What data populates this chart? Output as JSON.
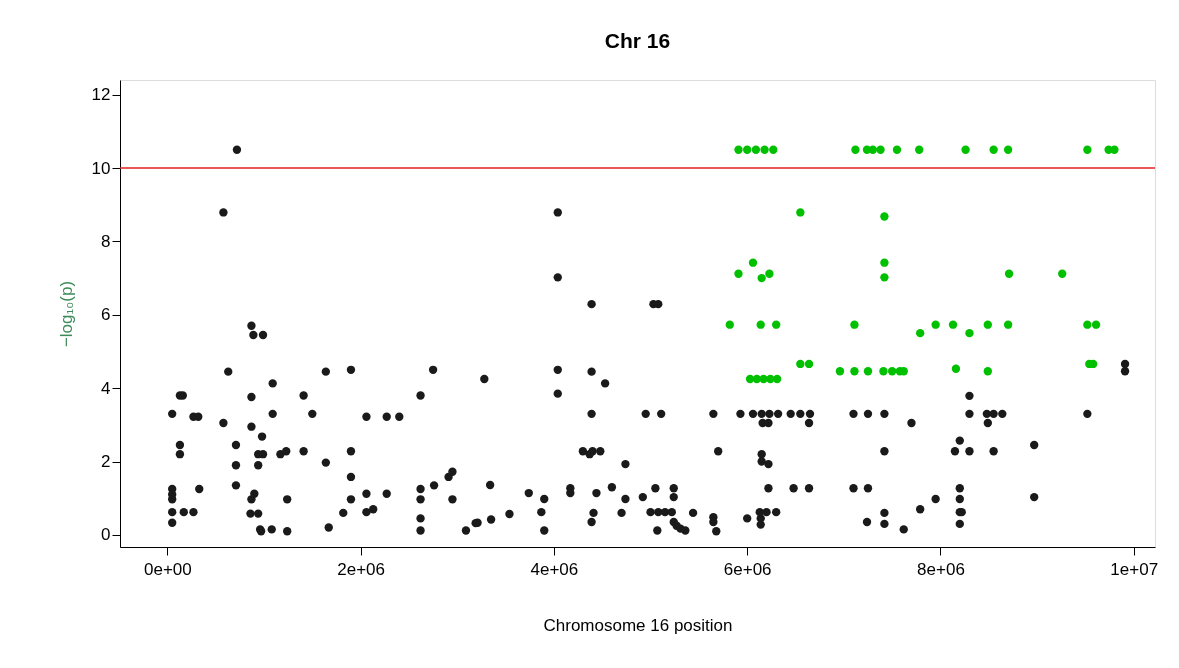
{
  "chart_data": {
    "type": "scatter",
    "title": "Chr 16",
    "xlabel": "Chromosome 16 position",
    "ylabel": "−log₁₀(p)",
    "xlim": [
      -490000,
      10220000
    ],
    "ylim": [
      -0.33,
      12.4
    ],
    "xticks": [
      {
        "value": 0,
        "label": "0e+00"
      },
      {
        "value": 2000000,
        "label": "2e+06"
      },
      {
        "value": 4000000,
        "label": "4e+06"
      },
      {
        "value": 6000000,
        "label": "6e+06"
      },
      {
        "value": 8000000,
        "label": "8e+06"
      },
      {
        "value": 10000000,
        "label": "1e+07"
      }
    ],
    "yticks": [
      0,
      2,
      4,
      6,
      8,
      10,
      12
    ],
    "grid": false,
    "legend": false,
    "marker": "circle",
    "ref_lines": [
      {
        "axis": "y",
        "value": 10,
        "color": "#e02020"
      }
    ],
    "series": [
      {
        "color": "#1a1a1a",
        "x": [
          720000,
          580000,
          870000,
          890000,
          990000,
          630000,
          1640000,
          1900000,
          2750000,
          1090000,
          130000,
          160000,
          870000,
          1410000,
          2620000,
          50000,
          270000,
          320000,
          1090000,
          1500000,
          2060000,
          2270000,
          2400000,
          580000,
          870000,
          980000,
          130000,
          130000,
          710000,
          710000,
          940000,
          990000,
          940000,
          1170000,
          1230000,
          1410000,
          1640000,
          1900000,
          1900000,
          330000,
          710000,
          50000,
          50000,
          50000,
          900000,
          870000,
          1240000,
          1900000,
          2060000,
          2130000,
          2060000,
          2270000,
          2620000,
          2620000,
          2620000,
          2620000,
          2760000,
          2910000,
          2950000,
          2950000,
          3090000,
          3190000,
          50000,
          170000,
          270000,
          50000,
          860000,
          940000,
          960000,
          1080000,
          970000,
          1240000,
          1670000,
          1820000,
          4040000,
          4040000,
          4390000,
          5030000,
          5080000,
          3280000,
          4040000,
          4390000,
          4530000,
          4040000,
          4390000,
          4950000,
          5110000,
          5650000,
          4300000,
          4400000,
          4480000,
          4370000,
          5700000,
          4740000,
          3340000,
          3740000,
          3900000,
          4170000,
          4170000,
          4440000,
          4600000,
          4740000,
          4920000,
          5050000,
          5240000,
          5240000,
          3210000,
          3350000,
          3540000,
          3870000,
          3900000,
          4410000,
          4390000,
          4700000,
          5000000,
          5080000,
          5150000,
          5220000,
          5070000,
          5240000,
          5270000,
          5310000,
          5360000,
          5440000,
          5650000,
          5650000,
          5680000,
          5930000,
          6060000,
          6150000,
          6230000,
          6320000,
          6450000,
          6550000,
          6650000,
          6160000,
          6220000,
          6640000,
          7100000,
          7250000,
          7420000,
          7700000,
          7420000,
          6150000,
          6150000,
          6220000,
          6220000,
          6480000,
          6640000,
          7100000,
          7250000,
          7950000,
          7790000,
          6000000,
          6130000,
          6200000,
          6300000,
          6140000,
          6140000,
          7240000,
          7420000,
          7420000,
          7620000,
          9910000,
          9910000,
          8300000,
          8300000,
          8480000,
          8550000,
          8640000,
          8490000,
          9520000,
          8200000,
          8150000,
          8300000,
          8550000,
          8970000,
          8200000,
          8200000,
          8200000,
          8220000,
          8200000,
          8970000
        ],
        "values": [
          10.5,
          8.79,
          5.7,
          5.45,
          5.45,
          4.45,
          4.45,
          4.5,
          4.5,
          4.13,
          3.8,
          3.8,
          3.76,
          3.8,
          3.8,
          3.3,
          3.22,
          3.22,
          3.3,
          3.3,
          3.22,
          3.22,
          3.22,
          3.05,
          2.95,
          2.68,
          2.45,
          2.2,
          2.45,
          1.9,
          2.2,
          2.2,
          1.9,
          2.2,
          2.28,
          2.28,
          1.97,
          2.28,
          1.58,
          1.25,
          1.35,
          1.25,
          1.1,
          0.97,
          1.12,
          0.97,
          0.97,
          0.97,
          1.12,
          0.7,
          0.62,
          1.12,
          1.25,
          0.97,
          0.45,
          0.12,
          1.35,
          1.58,
          1.72,
          0.97,
          0.12,
          0.32,
          0.62,
          0.62,
          0.62,
          0.33,
          0.58,
          0.58,
          0.15,
          0.15,
          0.1,
          0.1,
          0.2,
          0.6,
          8.79,
          7.02,
          6.29,
          6.29,
          6.29,
          4.25,
          4.5,
          4.45,
          4.13,
          3.85,
          3.3,
          3.3,
          3.3,
          3.3,
          2.28,
          2.28,
          2.28,
          2.2,
          2.28,
          1.93,
          1.36,
          1.14,
          0.98,
          1.27,
          1.14,
          1.14,
          1.3,
          0.98,
          1.03,
          1.27,
          1.27,
          1.03,
          0.33,
          0.42,
          0.57,
          0.62,
          0.12,
          0.6,
          0.35,
          0.6,
          0.62,
          0.62,
          0.62,
          0.62,
          0.12,
          0.35,
          0.25,
          0.17,
          0.12,
          0.6,
          0.48,
          0.35,
          0.1,
          3.3,
          3.3,
          3.3,
          3.3,
          3.3,
          3.3,
          3.3,
          3.3,
          3.05,
          3.05,
          3.05,
          3.3,
          3.3,
          3.3,
          3.05,
          2.28,
          2.2,
          2.0,
          1.93,
          1.27,
          1.27,
          1.27,
          1.27,
          1.27,
          0.98,
          0.7,
          0.45,
          0.62,
          0.62,
          0.62,
          0.45,
          0.28,
          0.35,
          0.6,
          0.3,
          0.15,
          4.66,
          4.46,
          3.79,
          3.3,
          3.3,
          3.3,
          3.3,
          3.05,
          3.3,
          2.57,
          2.28,
          2.28,
          2.28,
          2.45,
          1.27,
          0.98,
          0.62,
          0.62,
          0.3,
          1.03
        ]
      },
      {
        "color": "#00c000",
        "x": [
          5910000,
          6000000,
          6090000,
          6180000,
          6270000,
          7120000,
          7240000,
          7300000,
          7380000,
          7550000,
          7780000,
          8260000,
          8550000,
          8700000,
          9520000,
          9740000,
          9800000,
          6550000,
          7420000,
          6060000,
          5910000,
          6150000,
          6230000,
          7420000,
          7420000,
          8710000,
          9260000,
          5820000,
          6140000,
          6300000,
          7110000,
          7790000,
          7950000,
          8130000,
          8300000,
          8490000,
          8700000,
          9520000,
          9610000,
          6030000,
          6100000,
          6170000,
          6240000,
          6310000,
          6550000,
          6640000,
          6960000,
          7110000,
          7250000,
          7410000,
          7500000,
          7580000,
          7620000,
          8160000,
          8490000,
          9540000,
          9580000
        ],
        "values": [
          10.5,
          10.5,
          10.5,
          10.5,
          10.5,
          10.5,
          10.5,
          10.5,
          10.5,
          10.5,
          10.5,
          10.5,
          10.5,
          10.5,
          10.5,
          10.5,
          10.5,
          8.79,
          8.68,
          7.42,
          7.12,
          7.0,
          7.12,
          7.42,
          7.02,
          7.12,
          7.12,
          5.73,
          5.73,
          5.73,
          5.73,
          5.5,
          5.73,
          5.73,
          5.5,
          5.73,
          5.73,
          5.73,
          5.73,
          4.25,
          4.25,
          4.25,
          4.25,
          4.25,
          4.66,
          4.66,
          4.46,
          4.46,
          4.46,
          4.46,
          4.46,
          4.46,
          4.46,
          4.53,
          4.46,
          4.66,
          4.66
        ]
      }
    ]
  }
}
